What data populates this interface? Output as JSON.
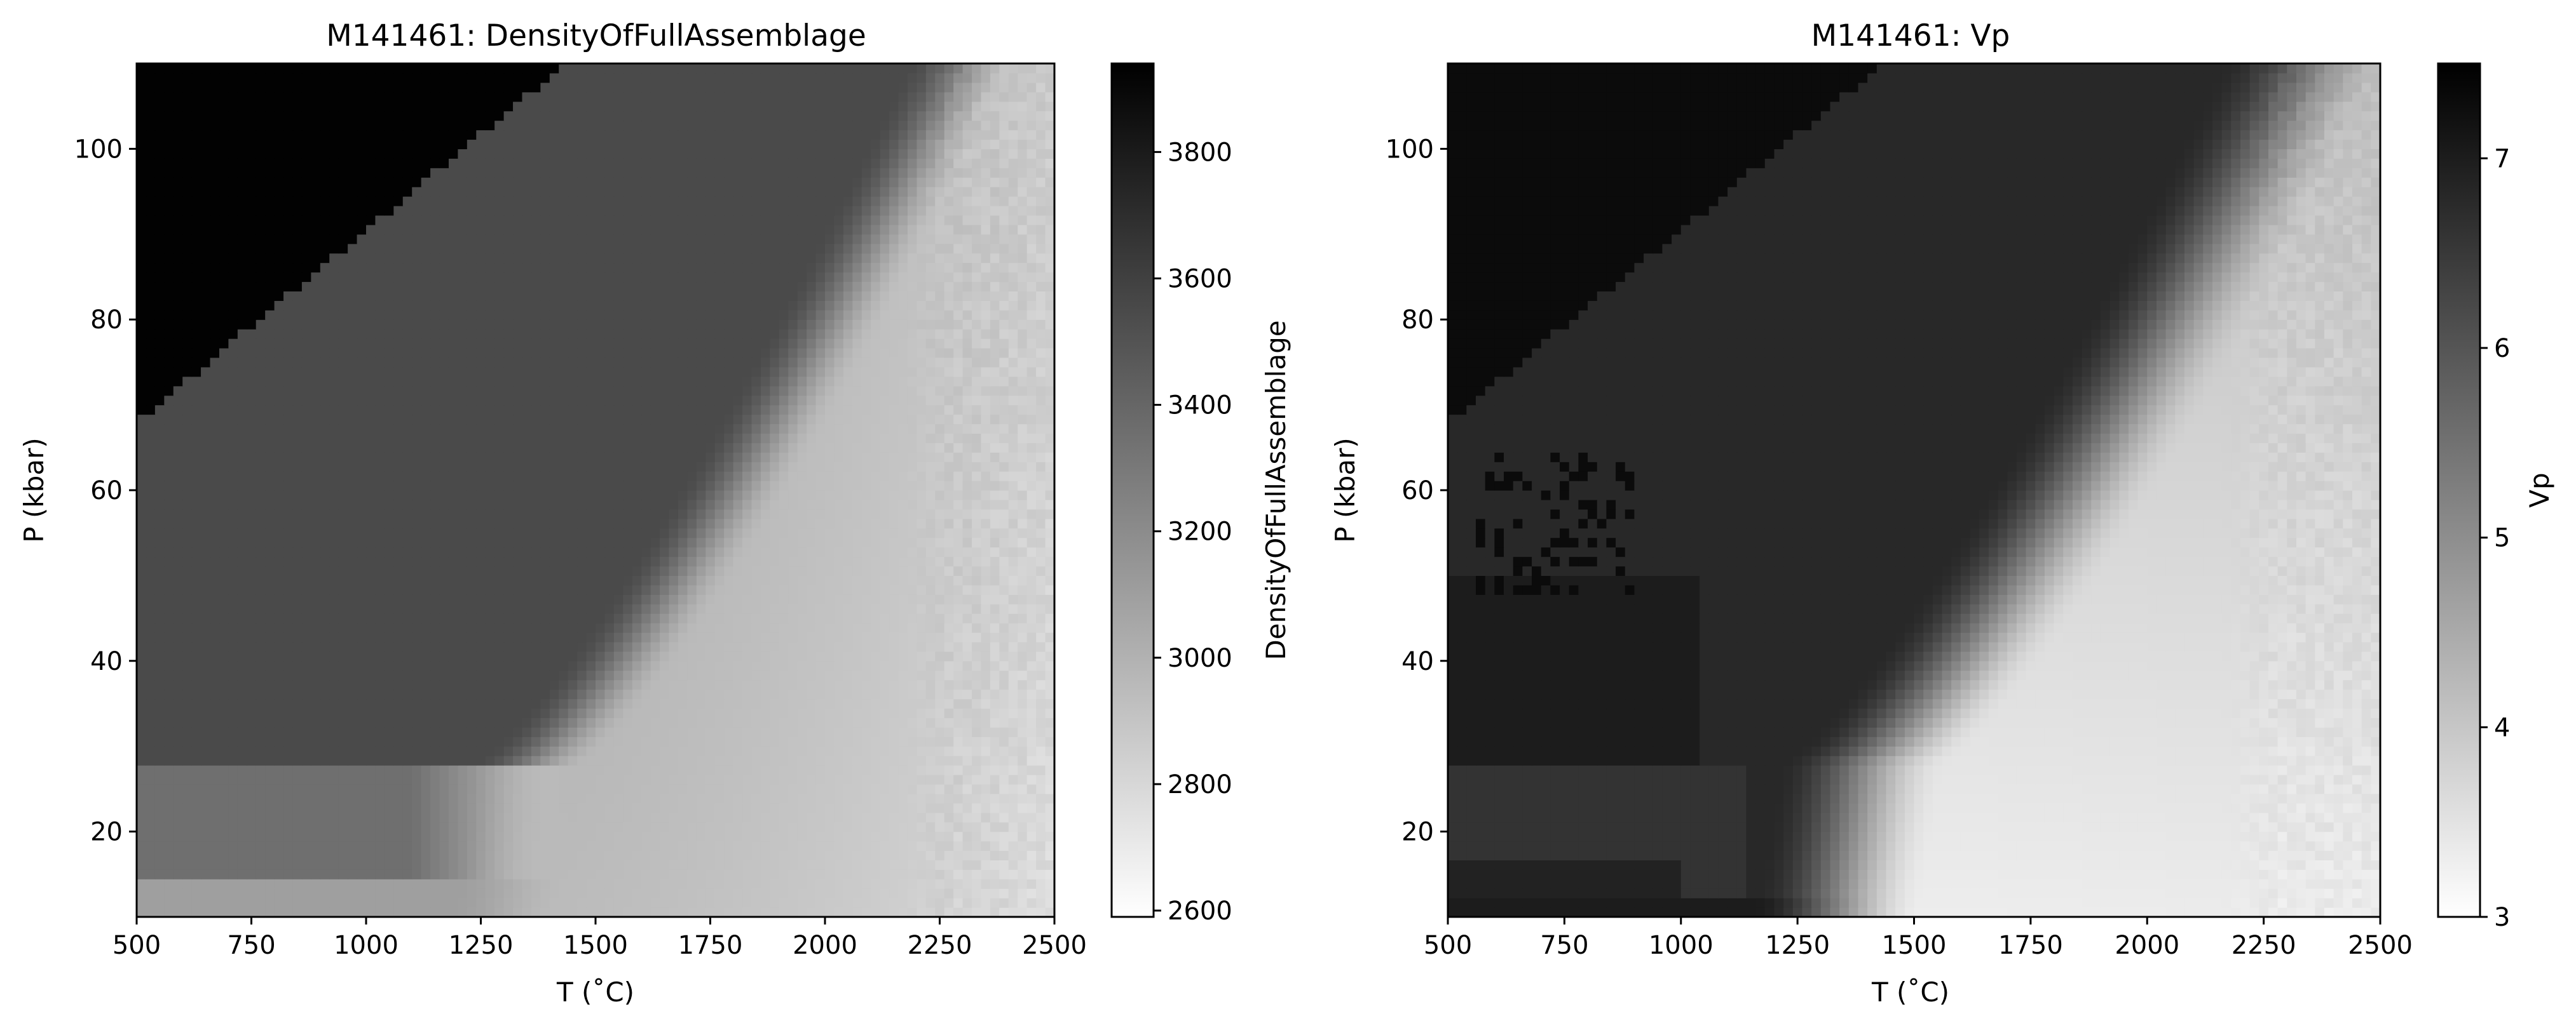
{
  "chart_data": [
    {
      "type": "heatmap",
      "title": "M141461: DensityOfFullAssemblage",
      "xlabel": "T (˚C)",
      "ylabel": "P (kbar)",
      "colorbar_label": "DensityOfFullAssemblage",
      "xlim": [
        500,
        2500
      ],
      "ylim": [
        10,
        110
      ],
      "xticks": [
        500,
        750,
        1000,
        1250,
        1500,
        1750,
        2000,
        2250,
        2500
      ],
      "yticks": [
        20,
        40,
        60,
        80,
        100
      ],
      "colorbar_range": [
        2590,
        3940
      ],
      "colorbar_ticks": [
        2600,
        2800,
        3000,
        3200,
        3400,
        3600,
        3800
      ],
      "colormap": "gray_r",
      "field": "Pressure-temperature grid: ~3930 at low T / high P (upper-left); ~3550 band in the middle; sharp transition along a curved boundary from about (1250, 28) to (2200, 110); ~2700 to ~2900 at high T / low P (lower-right); ~3350 wedge below 28 kbar at low T."
    },
    {
      "type": "heatmap",
      "title": "M141461: Vp",
      "xlabel": "T (˚C)",
      "ylabel": "P (kbar)",
      "colorbar_label": "Vp",
      "xlim": [
        500,
        2500
      ],
      "ylim": [
        10,
        110
      ],
      "xticks": [
        500,
        750,
        1000,
        1250,
        1500,
        1750,
        2000,
        2250,
        2500
      ],
      "yticks": [
        20,
        40,
        60,
        80,
        100
      ],
      "colorbar_range": [
        3.0,
        7.5
      ],
      "colorbar_ticks": [
        3,
        4,
        5,
        6,
        7
      ],
      "colormap": "gray_r",
      "field": "Pressure-temperature grid: ~7.3 at low T / high P; ~6.8 band in the middle; transition along the same curved boundary; ~3.3 to ~4.5 at high T / low P; blocky ~6.5 to 7.0 patches below 50 kbar at low T."
    }
  ]
}
